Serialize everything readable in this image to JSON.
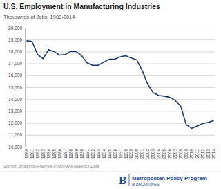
{
  "chart_data": {
    "type": "line",
    "title": "U.S. Employment in Manufacturing Industries",
    "subtitle": "Thousands of Jobs, 1980-2014",
    "annotations": [
      "Source: Brookings Analysis of Moody's Analytics Data",
      "B",
      "Metropolitan Policy Program",
      "at BROOKINGS"
    ],
    "categories": [
      "1980",
      "1981",
      "1982",
      "1983",
      "1984",
      "1985",
      "1986",
      "1987",
      "1988",
      "1989",
      "1990",
      "1991",
      "1992",
      "1993",
      "1994",
      "1995",
      "1996",
      "1997",
      "1998",
      "1999",
      "2000",
      "2001",
      "2002",
      "2003",
      "2004",
      "2005",
      "2006",
      "2007",
      "2008",
      "2009",
      "2010",
      "2011",
      "2012",
      "2013",
      "2014"
    ],
    "values": [
      18900,
      18850,
      17750,
      17400,
      18150,
      18000,
      17700,
      17750,
      18000,
      18000,
      17650,
      17050,
      16850,
      16850,
      17100,
      17350,
      17350,
      17550,
      17650,
      17450,
      17300,
      16400,
      15250,
      14550,
      14300,
      14250,
      14150,
      13900,
      13400,
      11850,
      11550,
      11750,
      11950,
      12050,
      12200
    ],
    "color": "#1f3a66",
    "ylim": [
      10000,
      20000
    ],
    "yticks": [
      {
        "value": 10000,
        "label": "10,000"
      },
      {
        "value": 11000,
        "label": "11,000"
      },
      {
        "value": 12000,
        "label": "12,000"
      },
      {
        "value": 13000,
        "label": "13,000"
      },
      {
        "value": 14000,
        "label": "14,000"
      },
      {
        "value": 15000,
        "label": "15,000"
      },
      {
        "value": 16000,
        "label": "16,000"
      },
      {
        "value": 17000,
        "label": "17,000"
      },
      {
        "value": 18000,
        "label": "18,000"
      },
      {
        "value": 19000,
        "label": "19,000"
      },
      {
        "value": 20000,
        "label": "20,000"
      }
    ],
    "grid": true
  }
}
